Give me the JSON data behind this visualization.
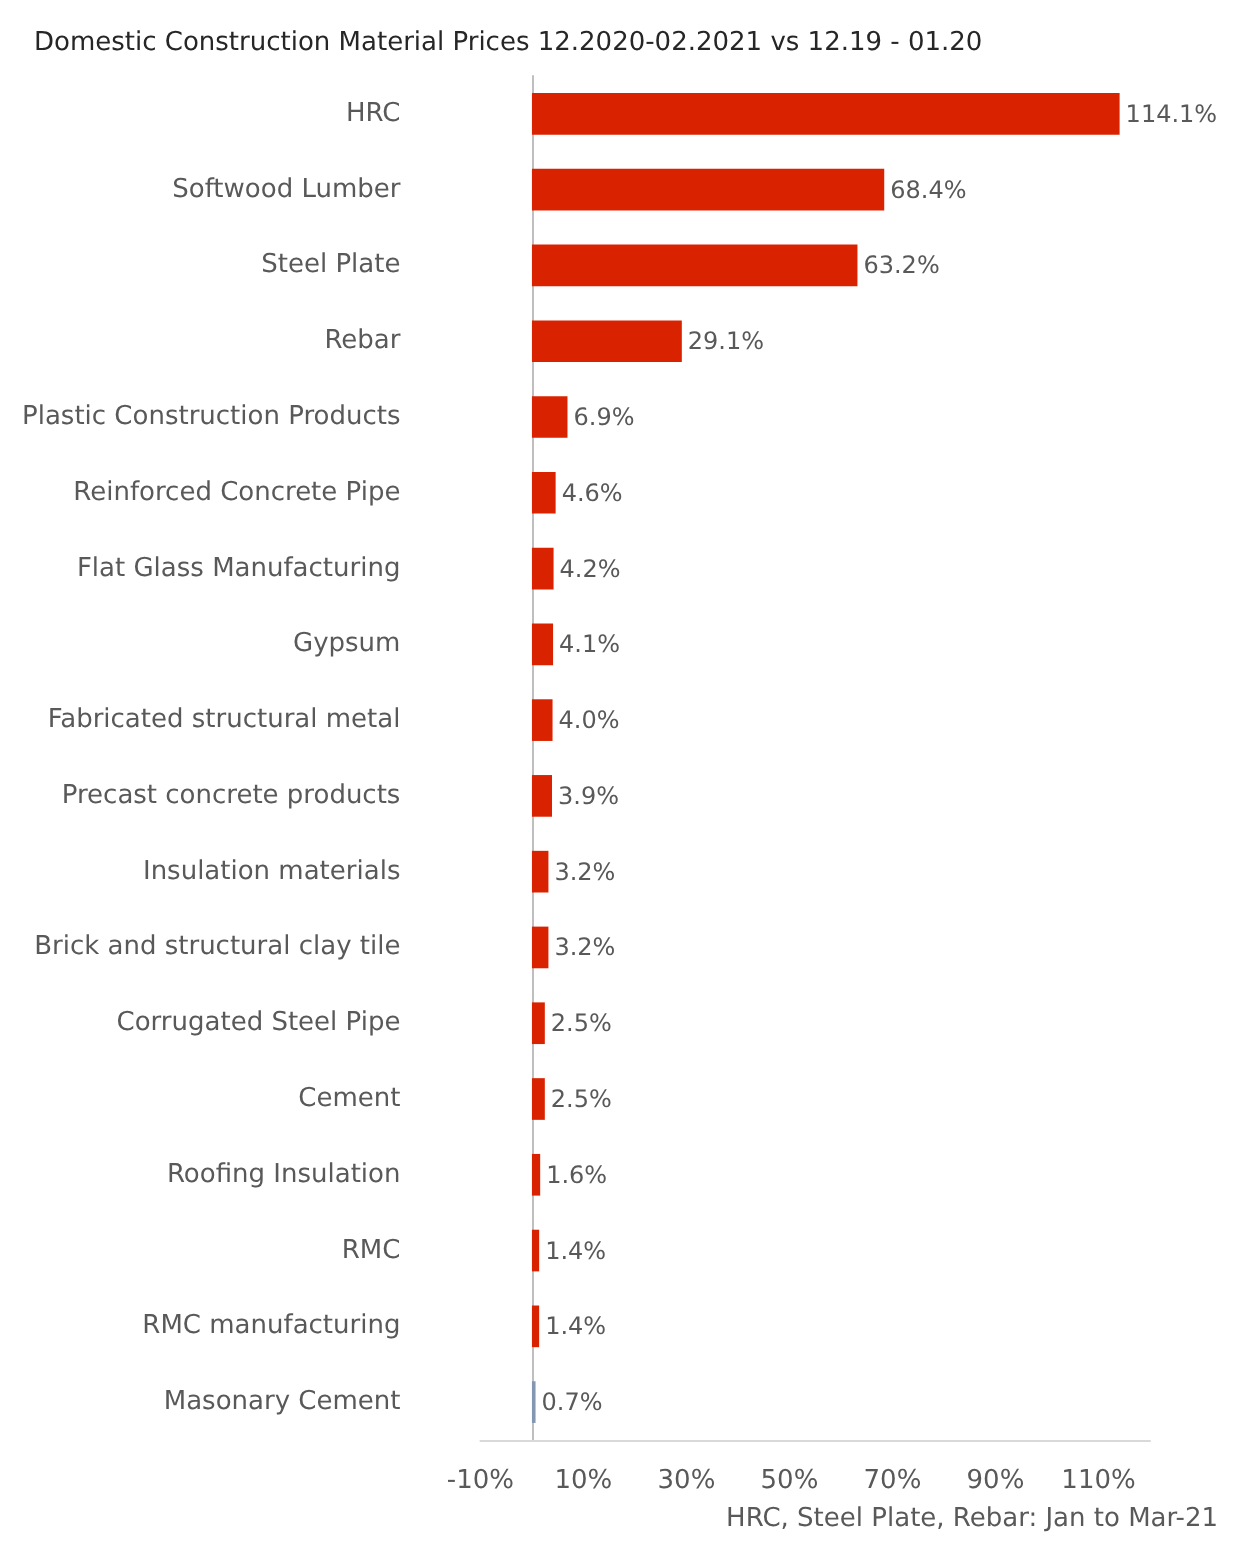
{
  "chart_data": {
    "type": "bar",
    "orientation": "horizontal",
    "title": "Domestic Construction Material Prices 12.2020-02.2021 vs 12.19 - 01.20",
    "categories": [
      "HRC",
      "Softwood Lumber",
      "Steel Plate",
      "Rebar",
      "Plastic Construction Products",
      "Reinforced Concrete Pipe",
      "Flat Glass Manufacturing",
      "Gypsum",
      "Fabricated structural metal",
      "Precast concrete products",
      "Insulation materials",
      "Brick and structural clay tile",
      "Corrugated Steel Pipe",
      "Cement",
      "Roofing Insulation",
      "RMC",
      "RMC manufacturing",
      "Masonary Cement"
    ],
    "values": [
      114.1,
      68.4,
      63.2,
      29.1,
      6.9,
      4.6,
      4.2,
      4.1,
      4.0,
      3.9,
      3.2,
      3.2,
      2.5,
      2.5,
      1.6,
      1.4,
      1.4,
      0.7
    ],
    "value_labels": [
      "114.1%",
      "68.4%",
      "63.2%",
      "29.1%",
      "6.9%",
      "4.6%",
      "4.2%",
      "4.1%",
      "4.0%",
      "3.9%",
      "3.2%",
      "3.2%",
      "2.5%",
      "2.5%",
      "1.6%",
      "1.4%",
      "1.4%",
      "0.7%"
    ],
    "colors": [
      "#d92300",
      "#d92300",
      "#d92300",
      "#d92300",
      "#d92300",
      "#d92300",
      "#d92300",
      "#d92300",
      "#d92300",
      "#d92300",
      "#d92300",
      "#d92300",
      "#d92300",
      "#d92300",
      "#d92300",
      "#d92300",
      "#d92300",
      "#8497b0"
    ],
    "xlim": [
      -10,
      120
    ],
    "xticks": [
      {
        "value": -10,
        "label": "-10%"
      },
      {
        "value": 10,
        "label": "10%"
      },
      {
        "value": 30,
        "label": "30%"
      },
      {
        "value": 50,
        "label": "50%"
      },
      {
        "value": 70,
        "label": "70%"
      },
      {
        "value": 90,
        "label": "90%"
      },
      {
        "value": 110,
        "label": "110%"
      }
    ],
    "grid": false,
    "annotations": [
      "HRC, Steel Plate, Rebar: Jan to Mar-21"
    ]
  }
}
